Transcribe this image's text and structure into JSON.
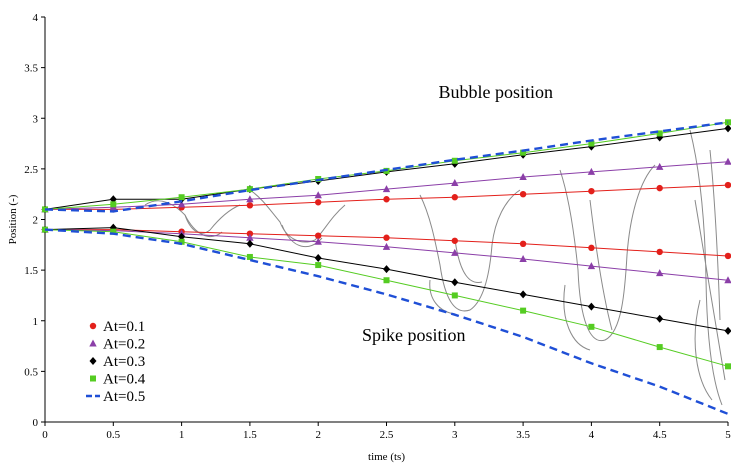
{
  "chart_data": {
    "type": "line",
    "xlabel": "time (ts)",
    "ylabel": "Position (-)",
    "xlim": [
      0,
      5
    ],
    "ylim": [
      0,
      4
    ],
    "x_ticks": [
      0,
      0.5,
      1,
      1.5,
      2,
      2.5,
      3,
      3.5,
      4,
      4.5,
      5
    ],
    "x_tick_labels": [
      "0",
      "0.5",
      "1",
      "1.5",
      "2",
      "2.5",
      "3",
      "3.5",
      "4",
      "4.5",
      "5"
    ],
    "y_ticks": [
      0,
      0.5,
      1,
      1.5,
      2,
      2.5,
      3,
      3.5,
      4
    ],
    "y_tick_labels": [
      "0",
      "0.5",
      "1",
      "1.5",
      "2",
      "2.5",
      "3",
      "3.5",
      "4"
    ],
    "grid": false,
    "legend_placement": "bottom-left",
    "annotations": [
      {
        "text": "Bubble position",
        "x": 3.3,
        "y": 3.2
      },
      {
        "text": "Spike position",
        "x": 2.7,
        "y": 0.8
      }
    ],
    "series": [
      {
        "name": "At=0.1",
        "color": "#e3201b",
        "marker": "circle",
        "line_style": "solid",
        "group": "bubble",
        "x": [
          0,
          0.5,
          1,
          1.5,
          2,
          2.5,
          3,
          3.5,
          4,
          4.5,
          5
        ],
        "y": [
          2.1,
          2.1,
          2.12,
          2.14,
          2.17,
          2.2,
          2.22,
          2.25,
          2.28,
          2.31,
          2.34
        ]
      },
      {
        "name": "At=0.2",
        "color": "#8b3fa8",
        "marker": "triangle",
        "line_style": "solid",
        "group": "bubble",
        "x": [
          0,
          0.5,
          1,
          1.5,
          2,
          2.5,
          3,
          3.5,
          4,
          4.5,
          5
        ],
        "y": [
          2.1,
          2.12,
          2.15,
          2.2,
          2.24,
          2.3,
          2.36,
          2.42,
          2.47,
          2.52,
          2.57
        ]
      },
      {
        "name": "At=0.3",
        "color": "#000000",
        "marker": "diamond",
        "line_style": "solid",
        "group": "bubble",
        "x": [
          0,
          0.5,
          1,
          1.5,
          2,
          2.5,
          3,
          3.5,
          4,
          4.5,
          5
        ],
        "y": [
          2.1,
          2.2,
          2.2,
          2.3,
          2.38,
          2.47,
          2.55,
          2.64,
          2.72,
          2.81,
          2.9
        ]
      },
      {
        "name": "At=0.4",
        "color": "#55cc22",
        "marker": "square",
        "line_style": "solid",
        "group": "bubble",
        "x": [
          0,
          0.5,
          1,
          1.5,
          2,
          2.5,
          3,
          3.5,
          4,
          4.5,
          5
        ],
        "y": [
          2.1,
          2.15,
          2.22,
          2.3,
          2.4,
          2.48,
          2.58,
          2.66,
          2.75,
          2.85,
          2.96
        ]
      },
      {
        "name": "At=0.5",
        "color": "#1f4fd6",
        "marker": "none",
        "line_style": "dashed",
        "group": "bubble",
        "x": [
          0,
          0.5,
          1,
          1.5,
          2,
          2.5,
          3,
          3.5,
          4,
          4.5,
          5
        ],
        "y": [
          2.1,
          2.08,
          2.18,
          2.29,
          2.39,
          2.49,
          2.59,
          2.68,
          2.78,
          2.87,
          2.96
        ]
      },
      {
        "name": "At=0.1",
        "color": "#e3201b",
        "marker": "circle",
        "line_style": "solid",
        "group": "spike",
        "x": [
          0,
          0.5,
          1,
          1.5,
          2,
          2.5,
          3,
          3.5,
          4,
          4.5,
          5
        ],
        "y": [
          1.9,
          1.9,
          1.88,
          1.86,
          1.84,
          1.82,
          1.79,
          1.76,
          1.72,
          1.68,
          1.64
        ]
      },
      {
        "name": "At=0.2",
        "color": "#8b3fa8",
        "marker": "triangle",
        "line_style": "solid",
        "group": "spike",
        "x": [
          0,
          0.5,
          1,
          1.5,
          2,
          2.5,
          3,
          3.5,
          4,
          4.5,
          5
        ],
        "y": [
          1.9,
          1.89,
          1.86,
          1.82,
          1.78,
          1.73,
          1.67,
          1.61,
          1.54,
          1.47,
          1.4
        ]
      },
      {
        "name": "At=0.3",
        "color": "#000000",
        "marker": "diamond",
        "line_style": "solid",
        "group": "spike",
        "x": [
          0,
          0.5,
          1,
          1.5,
          2,
          2.5,
          3,
          3.5,
          4,
          4.5,
          5
        ],
        "y": [
          1.9,
          1.92,
          1.83,
          1.76,
          1.62,
          1.51,
          1.38,
          1.26,
          1.14,
          1.02,
          0.9
        ]
      },
      {
        "name": "At=0.4",
        "color": "#55cc22",
        "marker": "square",
        "line_style": "solid",
        "group": "spike",
        "x": [
          0,
          0.5,
          1,
          1.5,
          2,
          2.5,
          3,
          3.5,
          4,
          4.5,
          5
        ],
        "y": [
          1.9,
          1.88,
          1.78,
          1.63,
          1.55,
          1.4,
          1.25,
          1.1,
          0.94,
          0.74,
          0.55
        ]
      },
      {
        "name": "At=0.5",
        "color": "#1f4fd6",
        "marker": "none",
        "line_style": "dashed",
        "group": "spike",
        "x": [
          0,
          0.5,
          1,
          1.5,
          2,
          2.5,
          3,
          3.5,
          4,
          4.5,
          5
        ],
        "y": [
          1.9,
          1.86,
          1.76,
          1.6,
          1.44,
          1.26,
          1.06,
          0.84,
          0.58,
          0.35,
          0.08
        ]
      }
    ],
    "legend": [
      {
        "label": "At=0.1",
        "color": "#e3201b",
        "marker": "circle"
      },
      {
        "label": "At=0.2",
        "color": "#8b3fa8",
        "marker": "triangle"
      },
      {
        "label": "At=0.3",
        "color": "#000000",
        "marker": "diamond"
      },
      {
        "label": "At=0.4",
        "color": "#55cc22",
        "marker": "square"
      },
      {
        "label": "At=0.5",
        "color": "#1f4fd6",
        "marker": "dashed-line"
      }
    ]
  }
}
